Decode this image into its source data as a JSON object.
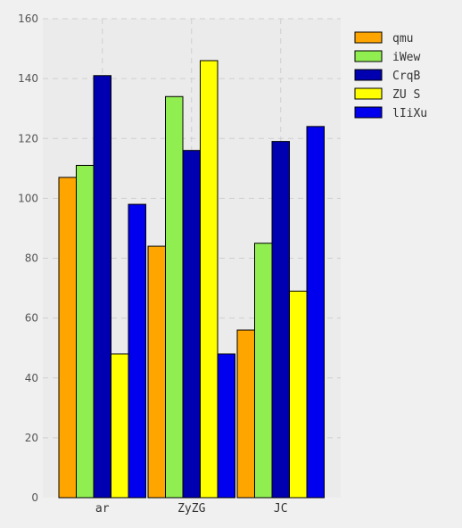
{
  "chart_data": {
    "type": "bar",
    "title": "",
    "xlabel": "",
    "ylabel": "",
    "categories": [
      "ar",
      "ZyZG",
      "JC"
    ],
    "series": [
      {
        "name": "qmu",
        "color": "#ffa500",
        "values": [
          107,
          84,
          56
        ]
      },
      {
        "name": "iWew",
        "color": "#90ee50",
        "values": [
          111,
          134,
          85
        ]
      },
      {
        "name": "CrqB",
        "color": "#0000b0",
        "values": [
          141,
          116,
          119
        ]
      },
      {
        "name": "ZU S",
        "color": "#ffff00",
        "values": [
          48,
          146,
          69
        ]
      },
      {
        "name": "lIiXu",
        "color": "#0000ee",
        "values": [
          98,
          48,
          124
        ]
      }
    ],
    "ylim": [
      0,
      160
    ],
    "yticks": [
      "0",
      "20",
      "40",
      "60",
      "80",
      "100",
      "120",
      "140",
      "160"
    ],
    "grid": true,
    "legend": "top-right"
  }
}
